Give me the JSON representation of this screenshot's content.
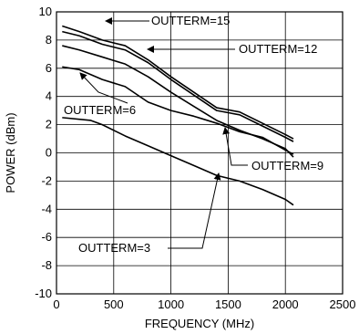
{
  "chart_data": {
    "type": "line",
    "xlabel": "FREQUENCY (MHz)",
    "ylabel": "POWER (dBm)",
    "xlim": [
      0,
      2500
    ],
    "ylim": [
      -10,
      10
    ],
    "xticks": [
      0,
      500,
      1000,
      1500,
      2000,
      2500
    ],
    "yticks": [
      -10,
      -8,
      -6,
      -4,
      -2,
      0,
      2,
      4,
      6,
      8,
      10
    ],
    "grid": true,
    "series": [
      {
        "name": "OUTTERM=15",
        "x": [
          50,
          200,
          400,
          600,
          800,
          1000,
          1200,
          1400,
          1600,
          1800,
          2000,
          2070
        ],
        "y": [
          9.0,
          8.6,
          8.0,
          7.6,
          6.6,
          5.4,
          4.3,
          3.2,
          2.9,
          2.1,
          1.3,
          1.0
        ]
      },
      {
        "name": "OUTTERM=12",
        "x": [
          50,
          200,
          400,
          600,
          800,
          1000,
          1200,
          1400,
          1600,
          1800,
          2000,
          2070
        ],
        "y": [
          8.6,
          8.3,
          7.7,
          7.3,
          6.4,
          5.2,
          4.1,
          3.0,
          2.7,
          1.9,
          1.1,
          0.8
        ]
      },
      {
        "name": "OUTTERM=9",
        "x": [
          50,
          200,
          400,
          600,
          800,
          1000,
          1200,
          1400,
          1600,
          1800,
          2000,
          2070
        ],
        "y": [
          7.6,
          7.3,
          6.8,
          6.3,
          5.4,
          4.3,
          3.3,
          2.3,
          1.6,
          1.0,
          0.3,
          -0.3
        ]
      },
      {
        "name": "OUTTERM=6",
        "x": [
          50,
          200,
          400,
          600,
          800,
          1000,
          1200,
          1400,
          1600,
          1800,
          2000,
          2070
        ],
        "y": [
          6.1,
          5.9,
          5.2,
          4.7,
          3.6,
          3.0,
          2.6,
          2.1,
          1.5,
          1.1,
          0.2,
          -0.1
        ]
      },
      {
        "name": "OUTTERM=3",
        "x": [
          50,
          300,
          400,
          600,
          800,
          1000,
          1200,
          1400,
          1600,
          1800,
          2000,
          2070
        ],
        "y": [
          2.5,
          2.3,
          2.0,
          1.2,
          0.5,
          -0.2,
          -0.9,
          -1.6,
          -2.0,
          -2.6,
          -3.3,
          -3.7
        ]
      }
    ],
    "annotations": [
      {
        "text": "OUTTERM=15",
        "target": "OUTTERM=15"
      },
      {
        "text": "OUTTERM=12",
        "target": "OUTTERM=12"
      },
      {
        "text": "OUTTERM=9",
        "target": "OUTTERM=9"
      },
      {
        "text": "OUTTERM=6",
        "target": "OUTTERM=6"
      },
      {
        "text": "OUTTERM=3",
        "target": "OUTTERM=3"
      }
    ]
  }
}
